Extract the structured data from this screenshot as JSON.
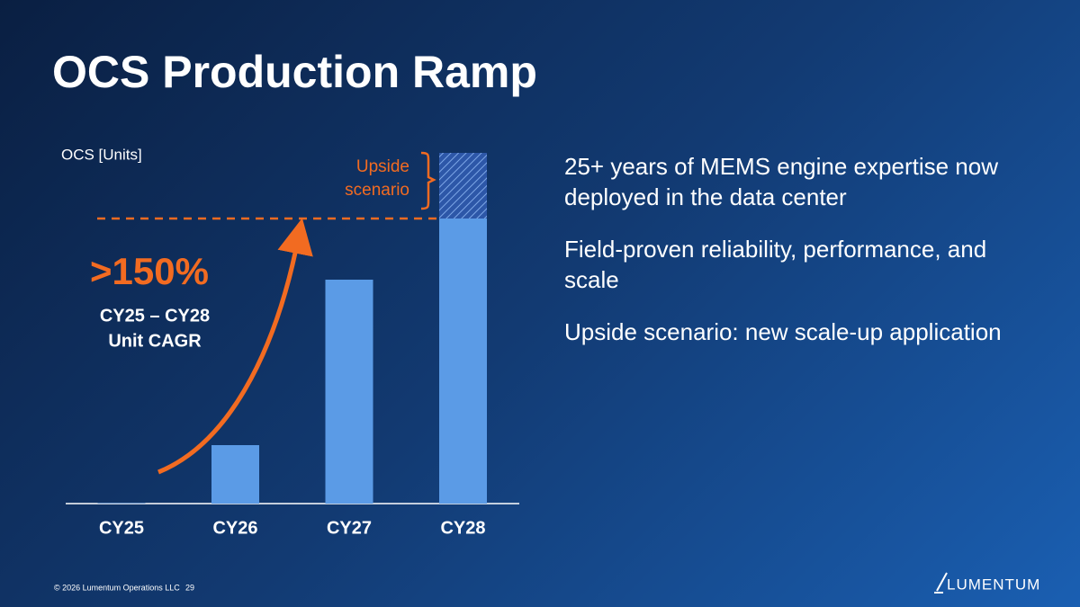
{
  "title": "OCS Production Ramp",
  "chart_data": {
    "type": "bar",
    "y_label": "OCS [Units]",
    "categories": [
      "CY25",
      "CY26",
      "CY27",
      "CY28"
    ],
    "values": [
      0.5,
      65,
      249,
      317
    ],
    "color": "#5b9be6",
    "ylim": [
      0,
      390
    ],
    "upside": {
      "label": "Upside scenario",
      "values": [
        null,
        null,
        null,
        73
      ]
    },
    "annotation": {
      "headline": ">150%",
      "lines": [
        "CY25 – CY28",
        "Unit CAGR"
      ]
    }
  },
  "bullets": [
    "25+ years of MEMS engine expertise now deployed in the data center",
    "Field-proven reliability, performance, and scale",
    "Upside scenario: new scale-up application"
  ],
  "footer": {
    "copyright": "© 2026 Lumentum Operations LLC",
    "page": "29",
    "logo": "LUMENTUM"
  }
}
